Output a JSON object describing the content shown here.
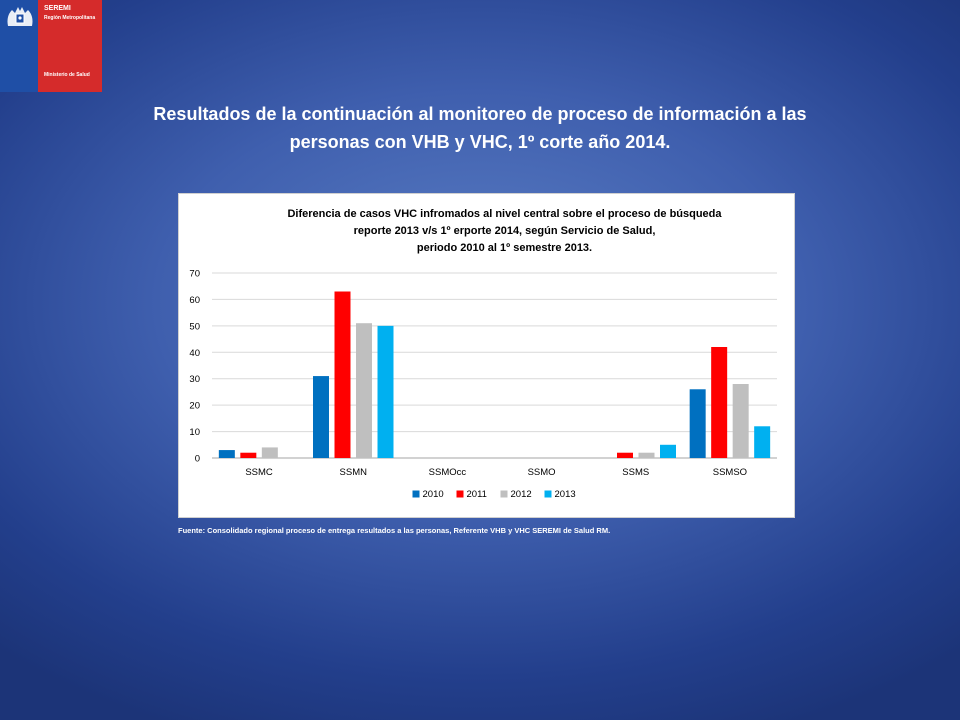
{
  "logo": {
    "line1": "SEREMI",
    "line2": "Región Metropolitana",
    "line3": "Ministerio de Salud",
    "colors": {
      "blue": "#1f4fa6",
      "red": "#d52b2b"
    }
  },
  "slide": {
    "title_line1": "Resultados de la continuación al monitoreo de proceso de información a las",
    "title_line2": "personas con VHB y VHC, 1º corte año 2014.",
    "source": "Fuente: Consolidado regional proceso de entrega resultados a las personas, Referente VHB y VHC SEREMI de Salud RM."
  },
  "chart_data": {
    "type": "bar",
    "title": [
      "Diferencia de casos VHC infromados al nivel central sobre el proceso de búsqueda",
      "reporte 2013 v/s 1º erporte 2014, según Servicio de Salud,",
      "periodo 2010 al 1º semestre 2013."
    ],
    "categories": [
      "SSMC",
      "SSMN",
      "SSMOcc",
      "SSMO",
      "SSMS",
      "SSMSO"
    ],
    "series": [
      {
        "name": "2010",
        "color": "#0070c0",
        "values": [
          3,
          31,
          0,
          0,
          0,
          26
        ]
      },
      {
        "name": "2011",
        "color": "#ff0000",
        "values": [
          2,
          63,
          0,
          0,
          2,
          42
        ]
      },
      {
        "name": "2012",
        "color": "#bfbfbf",
        "values": [
          4,
          51,
          0,
          0,
          2,
          28
        ]
      },
      {
        "name": "2013",
        "color": "#00b0f0",
        "values": [
          0,
          50,
          0,
          0,
          5,
          12
        ]
      }
    ],
    "ylim": [
      0,
      70
    ],
    "yticks": [
      0,
      10,
      20,
      30,
      40,
      50,
      60,
      70
    ],
    "xlabel": "",
    "ylabel": "",
    "grid": true,
    "legend": "bottom"
  }
}
